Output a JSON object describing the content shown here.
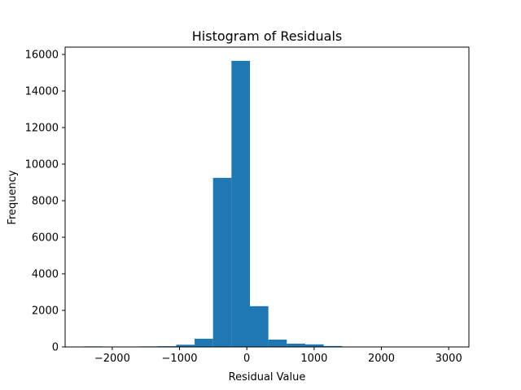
{
  "chart_data": {
    "type": "bar",
    "title": "Histogram of Residuals",
    "xlabel": "Residual Value",
    "ylabel": "Frequency",
    "color": "#1f77b4",
    "xlim": [
      -2700,
      3300
    ],
    "ylim": [
      0,
      16400
    ],
    "grid": false,
    "x_ticks": [
      -2000,
      -1000,
      0,
      1000,
      2000,
      3000
    ],
    "x_tick_labels": [
      "−2000",
      "−1000",
      "0",
      "1000",
      "2000",
      "3000"
    ],
    "y_ticks": [
      0,
      2000,
      4000,
      6000,
      8000,
      10000,
      12000,
      14000,
      16000
    ],
    "y_tick_labels": [
      "0",
      "2000",
      "4000",
      "6000",
      "8000",
      "10000",
      "12000",
      "14000",
      "16000"
    ],
    "bins": [
      {
        "x0": -2420,
        "x1": -2146,
        "count": 30
      },
      {
        "x0": -2146,
        "x1": -1872,
        "count": 10
      },
      {
        "x0": -1872,
        "x1": -1598,
        "count": 15
      },
      {
        "x0": -1598,
        "x1": -1324,
        "count": 30
      },
      {
        "x0": -1324,
        "x1": -1050,
        "count": 40
      },
      {
        "x0": -1050,
        "x1": -776,
        "count": 120
      },
      {
        "x0": -776,
        "x1": -502,
        "count": 450
      },
      {
        "x0": -502,
        "x1": -228,
        "count": 9250
      },
      {
        "x0": -228,
        "x1": 46,
        "count": 15650
      },
      {
        "x0": 46,
        "x1": 320,
        "count": 2230
      },
      {
        "x0": 320,
        "x1": 594,
        "count": 400
      },
      {
        "x0": 594,
        "x1": 868,
        "count": 180
      },
      {
        "x0": 868,
        "x1": 1142,
        "count": 140
      },
      {
        "x0": 1142,
        "x1": 1416,
        "count": 50
      },
      {
        "x0": 1416,
        "x1": 1690,
        "count": 20
      },
      {
        "x0": 1690,
        "x1": 1964,
        "count": 10
      },
      {
        "x0": 1964,
        "x1": 2238,
        "count": 8
      },
      {
        "x0": 2238,
        "x1": 2512,
        "count": 5
      },
      {
        "x0": 2512,
        "x1": 2786,
        "count": 4
      },
      {
        "x0": 2786,
        "x1": 3060,
        "count": 3
      }
    ]
  }
}
